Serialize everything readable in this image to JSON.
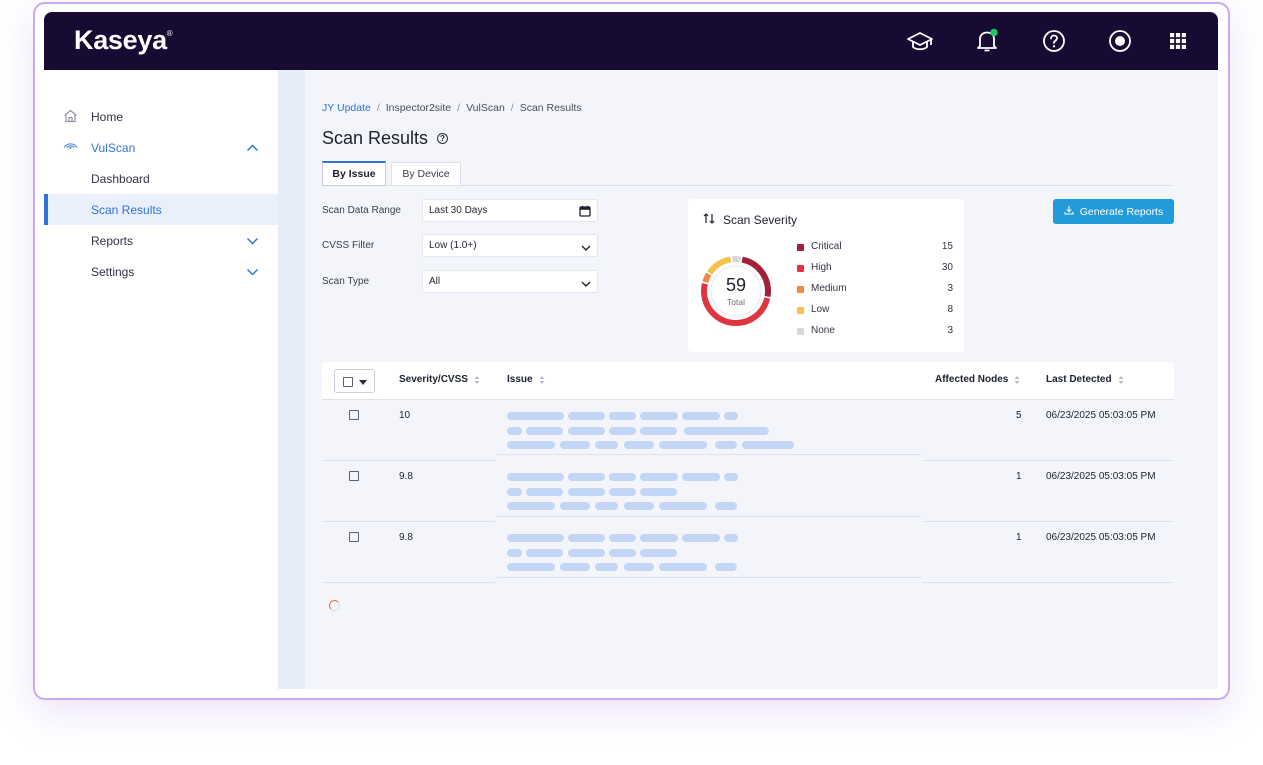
{
  "brand": {
    "logo": "Kaseya",
    "mark": "®"
  },
  "topbar": {
    "icons": [
      "graduation-cap-icon",
      "bell-icon",
      "help-icon",
      "user-icon",
      "apps-grid-icon"
    ],
    "notification_color": "#22c55e"
  },
  "sidebar": {
    "items": [
      {
        "label": "Home",
        "icon": "home-icon"
      },
      {
        "label": "VulScan",
        "icon": "eye-icon"
      },
      {
        "label": "Dashboard"
      },
      {
        "label": "Scan Results"
      },
      {
        "label": "Reports"
      },
      {
        "label": "Settings"
      }
    ]
  },
  "breadcrumb": {
    "items": [
      "JY Update",
      "Inspector2site",
      "VulScan",
      "Scan Results"
    ],
    "separator": "/"
  },
  "page": {
    "title": "Scan Results"
  },
  "tabs": [
    "By Issue",
    "By Device"
  ],
  "filters": {
    "range_label": "Scan Data Range",
    "range_value": "Last 30 Days",
    "cvss_label": "CVSS Filter",
    "cvss_value": "Low (1.0+)",
    "type_label": "Scan Type",
    "type_value": "All"
  },
  "severity": {
    "title": "Scan Severity",
    "total": "59",
    "total_label": "Total",
    "items": [
      {
        "name": "Critical",
        "count": "15",
        "color": "#a3203b"
      },
      {
        "name": "High",
        "count": "30",
        "color": "#e0353f"
      },
      {
        "name": "Medium",
        "count": "3",
        "color": "#f08a45"
      },
      {
        "name": "Low",
        "count": "8",
        "color": "#f6c24e"
      },
      {
        "name": "None",
        "count": "3",
        "color": "#d8d8dc"
      }
    ]
  },
  "actions": {
    "generate_reports": "Generate Reports"
  },
  "table": {
    "headers": {
      "severity": "Severity/CVSS",
      "issue": "Issue",
      "nodes": "Affected Nodes",
      "detected": "Last Detected"
    },
    "rows": [
      {
        "severity": "10",
        "nodes": "5",
        "detected": "06/23/2025 05:03:05 PM"
      },
      {
        "severity": "9.8",
        "nodes": "1",
        "detected": "06/23/2025 05:03:05 PM"
      },
      {
        "severity": "9.8",
        "nodes": "1",
        "detected": "06/23/2025 05:03:05 PM"
      }
    ]
  },
  "colors": {
    "accent": "#2f74d4",
    "topbar": "#170b33",
    "button": "#239ad9",
    "placeholder": "#c3d6f6"
  }
}
